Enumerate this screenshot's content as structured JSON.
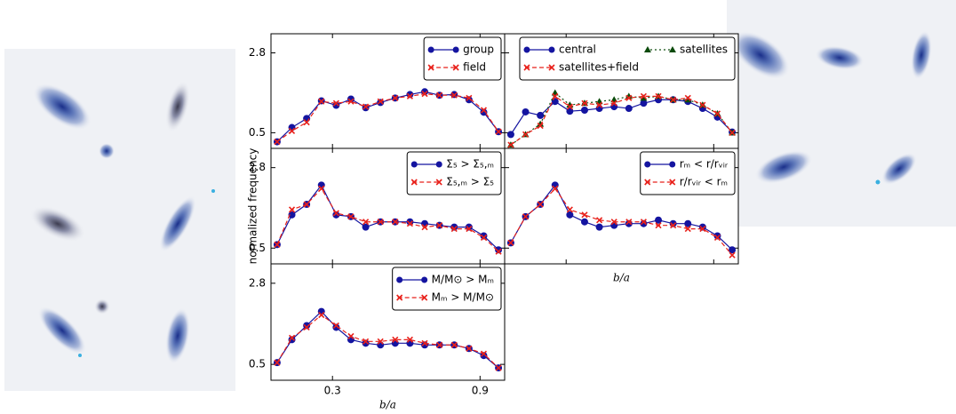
{
  "chart_data": [
    {
      "type": "line",
      "ylim": [
        0.05,
        3.35
      ],
      "xlim": [
        0.05,
        1.0
      ],
      "yticks": [
        0.5,
        2.8
      ],
      "xticks": [
        0.3,
        0.9
      ],
      "show_ytick_labels": true,
      "show_xtick_labels": false,
      "legend": "upper right",
      "legend_ncol": 1,
      "x": [
        0.075,
        0.135,
        0.195,
        0.255,
        0.315,
        0.375,
        0.435,
        0.495,
        0.555,
        0.615,
        0.675,
        0.735,
        0.795,
        0.855,
        0.915,
        0.975
      ],
      "series": [
        {
          "name": "group",
          "color": "#1414a0",
          "marker": "circle",
          "linestyle": "solid",
          "values": [
            0.24,
            0.65,
            0.91,
            1.42,
            1.29,
            1.47,
            1.22,
            1.37,
            1.5,
            1.6,
            1.68,
            1.58,
            1.6,
            1.45,
            1.09,
            0.53
          ]
        },
        {
          "name": "field",
          "color": "#e8201a",
          "marker": "x",
          "linestyle": "dashed",
          "values": [
            0.24,
            0.55,
            0.8,
            1.4,
            1.35,
            1.4,
            1.25,
            1.4,
            1.5,
            1.55,
            1.62,
            1.58,
            1.58,
            1.5,
            1.15,
            0.53
          ]
        }
      ]
    },
    {
      "type": "line",
      "ylim": [
        0.05,
        3.35
      ],
      "xlim": [
        0.05,
        1.0
      ],
      "yticks": [
        0.5,
        2.8
      ],
      "xticks": [
        0.3,
        0.9
      ],
      "show_ytick_labels": false,
      "show_xtick_labels": false,
      "legend": "upper right",
      "legend_ncol": 2,
      "x": [
        0.075,
        0.135,
        0.195,
        0.255,
        0.315,
        0.375,
        0.435,
        0.495,
        0.555,
        0.615,
        0.675,
        0.735,
        0.795,
        0.855,
        0.915,
        0.975
      ],
      "series": [
        {
          "name": "central",
          "color": "#1414a0",
          "marker": "circle",
          "linestyle": "solid",
          "values": [
            0.45,
            1.1,
            1.0,
            1.4,
            1.12,
            1.15,
            1.2,
            1.25,
            1.2,
            1.35,
            1.45,
            1.45,
            1.4,
            1.2,
            0.95,
            0.52
          ]
        },
        {
          "name": "satellites",
          "color": "#0a4a0a",
          "marker": "triangle",
          "linestyle": "dotted",
          "values": [
            0.15,
            0.45,
            0.75,
            1.65,
            1.3,
            1.35,
            1.4,
            1.45,
            1.55,
            1.5,
            1.55,
            1.45,
            1.45,
            1.3,
            1.05,
            0.5
          ]
        },
        {
          "name": "satellites+field",
          "color": "#e8201a",
          "marker": "x",
          "linestyle": "dashed",
          "values": [
            0.15,
            0.45,
            0.7,
            1.55,
            1.25,
            1.35,
            1.3,
            1.35,
            1.5,
            1.55,
            1.55,
            1.45,
            1.5,
            1.3,
            1.05,
            0.5
          ]
        }
      ]
    },
    {
      "type": "line",
      "ylim": [
        0.05,
        3.35
      ],
      "xlim": [
        0.05,
        1.0
      ],
      "yticks": [
        0.5,
        2.8
      ],
      "xticks": [
        0.3,
        0.9
      ],
      "show_ytick_labels": true,
      "show_xtick_labels": false,
      "legend": "upper right",
      "legend_ncol": 1,
      "ylabel": "normalized frequency",
      "x": [
        0.075,
        0.135,
        0.195,
        0.255,
        0.315,
        0.375,
        0.435,
        0.495,
        0.555,
        0.615,
        0.675,
        0.735,
        0.795,
        0.855,
        0.915,
        0.975
      ],
      "series": [
        {
          "name": "Σ₅ > Σ₅,ₘ",
          "color": "#1414a0",
          "marker": "circle",
          "linestyle": "solid",
          "values": [
            0.6,
            1.45,
            1.75,
            2.3,
            1.45,
            1.4,
            1.1,
            1.25,
            1.25,
            1.25,
            1.2,
            1.15,
            1.1,
            1.1,
            0.85,
            0.45
          ]
        },
        {
          "name": "Σ₅,ₘ > Σ₅",
          "color": "#e8201a",
          "marker": "x",
          "linestyle": "dashed",
          "values": [
            0.6,
            1.6,
            1.75,
            2.2,
            1.5,
            1.4,
            1.25,
            1.25,
            1.25,
            1.2,
            1.1,
            1.15,
            1.05,
            1.05,
            0.8,
            0.4
          ]
        }
      ]
    },
    {
      "type": "line",
      "ylim": [
        0.05,
        3.35
      ],
      "xlim": [
        0.05,
        1.0
      ],
      "yticks": [
        0.5,
        2.8
      ],
      "xticks": [
        0.3,
        0.9
      ],
      "show_ytick_labels": false,
      "show_xtick_labels": false,
      "legend": "upper right",
      "legend_ncol": 1,
      "xlabel": "b/a",
      "x": [
        0.075,
        0.135,
        0.195,
        0.255,
        0.315,
        0.375,
        0.435,
        0.495,
        0.555,
        0.615,
        0.675,
        0.735,
        0.795,
        0.855,
        0.915,
        0.975
      ],
      "series": [
        {
          "name": "rₘ < r/rᵥᵢᵣ",
          "color": "#1414a0",
          "marker": "circle",
          "linestyle": "solid",
          "values": [
            0.65,
            1.4,
            1.75,
            2.3,
            1.45,
            1.25,
            1.1,
            1.15,
            1.2,
            1.2,
            1.3,
            1.2,
            1.2,
            1.1,
            0.85,
            0.45
          ]
        },
        {
          "name": "r/rᵥᵢᵣ < rₘ",
          "color": "#e8201a",
          "marker": "x",
          "linestyle": "dashed",
          "values": [
            0.65,
            1.4,
            1.75,
            2.2,
            1.6,
            1.45,
            1.3,
            1.25,
            1.25,
            1.25,
            1.15,
            1.15,
            1.05,
            1.05,
            0.8,
            0.3
          ]
        }
      ]
    },
    {
      "type": "line",
      "ylim": [
        0.05,
        3.35
      ],
      "xlim": [
        0.05,
        1.0
      ],
      "yticks": [
        0.5,
        2.8
      ],
      "xticks": [
        0.3,
        0.9
      ],
      "show_ytick_labels": true,
      "show_xtick_labels": true,
      "legend": "upper right",
      "legend_ncol": 1,
      "xlabel": "b/a",
      "x": [
        0.075,
        0.135,
        0.195,
        0.255,
        0.315,
        0.375,
        0.435,
        0.495,
        0.555,
        0.615,
        0.675,
        0.735,
        0.795,
        0.855,
        0.915,
        0.975
      ],
      "series": [
        {
          "name": "M/M⊙ > Mₘ",
          "color": "#1414a0",
          "marker": "circle",
          "linestyle": "solid",
          "values": [
            0.55,
            1.2,
            1.6,
            2.0,
            1.55,
            1.2,
            1.1,
            1.05,
            1.1,
            1.1,
            1.05,
            1.05,
            1.05,
            0.95,
            0.75,
            0.4
          ]
        },
        {
          "name": "Mₘ > M/M⊙",
          "color": "#e8201a",
          "marker": "x",
          "linestyle": "dashed",
          "values": [
            0.55,
            1.25,
            1.55,
            1.9,
            1.6,
            1.3,
            1.15,
            1.15,
            1.2,
            1.2,
            1.1,
            1.05,
            1.05,
            0.95,
            0.8,
            0.4
          ]
        }
      ]
    }
  ]
}
